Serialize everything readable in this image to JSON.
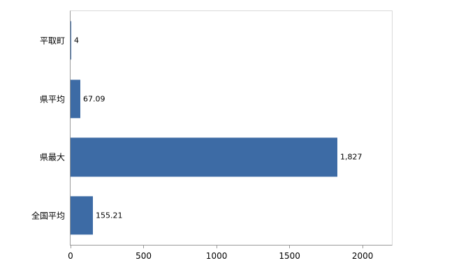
{
  "chart": {
    "background": "#ffffff",
    "bar_color": "#3d6ba5",
    "axis_color": "#9b9b9b",
    "border_color": "#d9d9d9"
  },
  "chart_data": {
    "type": "bar",
    "orientation": "horizontal",
    "title": "",
    "xlabel": "",
    "ylabel": "",
    "categories": [
      "平取町",
      "県平均",
      "県最大",
      "全国平均"
    ],
    "values": [
      4,
      67.09,
      1827,
      155.21
    ],
    "value_labels": [
      "4",
      "67.09",
      "1,827",
      "155.21"
    ],
    "xlim": [
      0,
      2200
    ],
    "xticks": [
      0,
      500,
      1000,
      1500,
      2000
    ],
    "xtick_labels": [
      "0",
      "500",
      "1000",
      "1500",
      "2000"
    ],
    "grid": false,
    "legend": "none"
  }
}
